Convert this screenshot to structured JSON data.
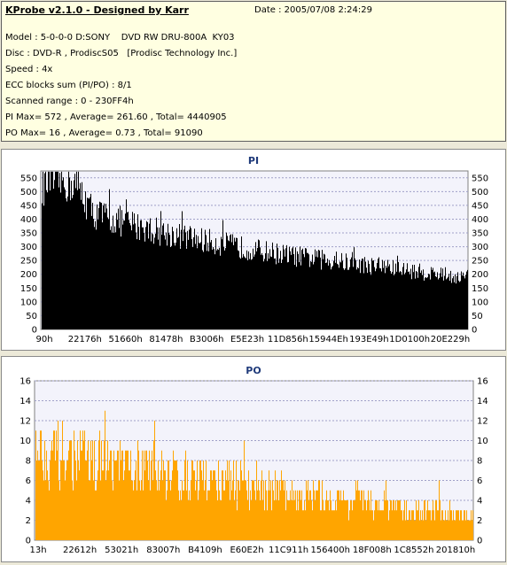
{
  "header": {
    "title": "KProbe v2.1.0 - Designed by Karr",
    "date": "Date : 2005/07/08 2:24:29",
    "lines": [
      "Model : 5-0-0-0 D:SONY    DVD RW DRU-800A  KY03",
      "Disc : DVD-R , ProdiscS05   [Prodisc Technology Inc.]",
      "Speed : 4x",
      "ECC blocks sum (PI/PO) : 8/1",
      "Scanned range : 0 - 230FF4h",
      "PI Max= 572 , Average= 261.60 , Total= 4440905",
      "PO Max= 16 , Average= 0.73 , Total= 91090"
    ]
  },
  "chart_data": [
    {
      "type": "bar",
      "title": "PI",
      "color": "#000000",
      "ylim": [
        0,
        575
      ],
      "yticks": [
        0,
        50,
        100,
        150,
        200,
        250,
        300,
        350,
        400,
        450,
        500,
        550
      ],
      "xticks": [
        "90h",
        "22176h",
        "51660h",
        "81478h",
        "B3006h",
        "E5E23h",
        "11D856h",
        "15944Eh",
        "193E49h",
        "1D0100h",
        "20E229h"
      ],
      "profile_x": [
        0,
        0.02,
        0.08,
        0.12,
        0.2,
        0.3,
        0.4,
        0.5,
        0.6,
        0.7,
        0.8,
        0.9,
        1.0
      ],
      "profile_y": [
        540,
        565,
        550,
        440,
        400,
        360,
        330,
        300,
        275,
        255,
        235,
        215,
        195
      ],
      "max": 572,
      "grid": true
    },
    {
      "type": "bar",
      "title": "PO",
      "color": "#ffa500",
      "ylim": [
        0,
        16
      ],
      "yticks": [
        0,
        2,
        4,
        6,
        8,
        10,
        12,
        14,
        16
      ],
      "xticks": [
        "13h",
        "22612h",
        "53021h",
        "83007h",
        "B4109h",
        "E60E2h",
        "11C911h",
        "156400h",
        "18F008h",
        "1C8552h",
        "201810h"
      ],
      "profile_x": [
        0,
        0.05,
        0.15,
        0.3,
        0.45,
        0.6,
        0.75,
        0.9,
        1.0
      ],
      "profile_y": [
        10,
        9.5,
        8.5,
        7.5,
        6.2,
        5.0,
        4.0,
        3.2,
        2.6
      ],
      "max": 16,
      "grid": true
    }
  ]
}
